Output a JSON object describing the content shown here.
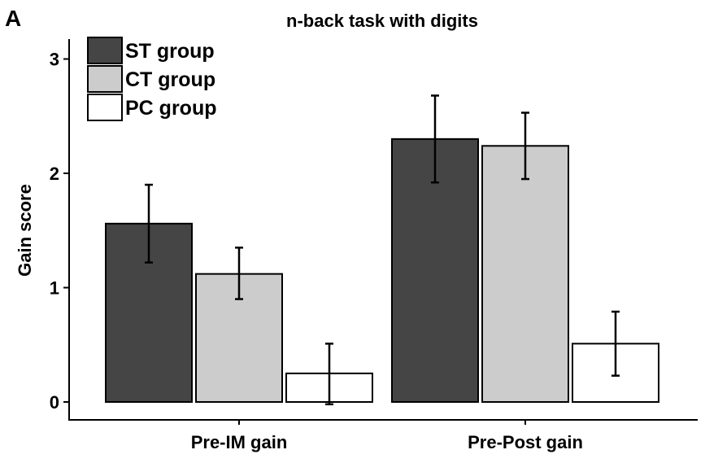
{
  "panel_label": "A",
  "chart_data": {
    "type": "bar",
    "title": "n-back task with digits",
    "xlabel": "",
    "ylabel": "Gain score",
    "ylim": [
      0,
      3.0
    ],
    "yticks": [
      "0",
      "1",
      "2",
      "3"
    ],
    "categories": [
      "Pre-IM gain",
      "Pre-Post gain"
    ],
    "series": [
      {
        "name": "ST group",
        "color": "#454545",
        "values": [
          1.56,
          2.3
        ],
        "error_low": [
          1.22,
          1.92
        ],
        "error_high": [
          1.9,
          2.68
        ]
      },
      {
        "name": "CT group",
        "color": "#cccccc",
        "values": [
          1.12,
          2.24
        ],
        "error_low": [
          0.9,
          1.95
        ],
        "error_high": [
          1.35,
          2.53
        ]
      },
      {
        "name": "PC group",
        "color": "#ffffff",
        "values": [
          0.25,
          0.51
        ],
        "error_low": [
          -0.02,
          0.23
        ],
        "error_high": [
          0.51,
          0.79
        ]
      }
    ],
    "legend_position": "top-left",
    "grid": false
  }
}
